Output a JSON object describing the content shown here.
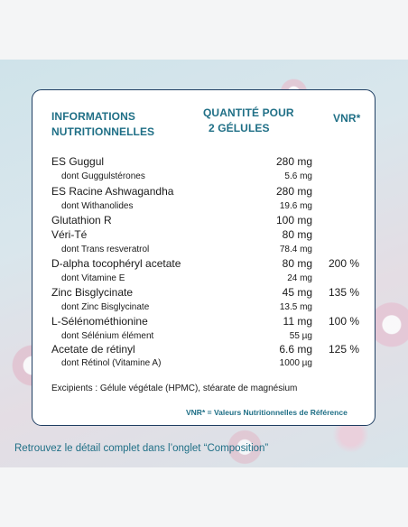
{
  "table": {
    "header": {
      "info_line1": "INFORMATIONS",
      "info_line2": "NUTRITIONNELLES",
      "qty_line1": "QUANTITÉ POUR",
      "qty_line2": "2 GÉLULES",
      "vnr": "VNR*"
    },
    "rows": [
      {
        "name": "ES Guggul",
        "amount": "280 mg",
        "vnr": ""
      },
      {
        "name": "dont Guggulstérones",
        "amount": "5.6 mg",
        "vnr": ""
      },
      {
        "name": "ES Racine Ashwagandha",
        "amount": "280 mg",
        "vnr": ""
      },
      {
        "name": "dont Withanolides",
        "amount": "19.6 mg",
        "vnr": ""
      },
      {
        "name": "Glutathion R",
        "amount": "100 mg",
        "vnr": ""
      },
      {
        "name": "Véri-Té",
        "amount": "80 mg",
        "vnr": ""
      },
      {
        "name": "dont Trans resveratrol",
        "amount": "78.4 mg",
        "vnr": ""
      },
      {
        "name": "D-alpha tocophéryl acetate",
        "amount": "80 mg",
        "vnr": "200 %"
      },
      {
        "name": "dont Vitamine E",
        "amount": "24 mg",
        "vnr": ""
      },
      {
        "name": "Zinc Bisglycinate",
        "amount": "45 mg",
        "vnr": "135 %"
      },
      {
        "name": "dont Zinc Bisglycinate",
        "amount": "13.5 mg",
        "vnr": ""
      },
      {
        "name": "L-Sélénométhionine",
        "amount": "11 mg",
        "vnr": "100 %"
      },
      {
        "name": "dont Sélénium élément",
        "amount": "55 µg",
        "vnr": ""
      },
      {
        "name": "Acetate de rétinyl",
        "amount": "6.6 mg",
        "vnr": "125 %"
      },
      {
        "name": "dont Rétinol (Vitamine A)",
        "amount": "1000 µg",
        "vnr": ""
      }
    ],
    "excipients": "Excipients : Gélule végétale (HPMC), stéarate de magnésium"
  },
  "legend": "VNR* = Valeurs Nutritionnelles de Référence",
  "footer": "Retrouvez le détail complet dans l’onglet “Composition”",
  "colors": {
    "accent": "#1f6f86",
    "border": "#1f3e62"
  }
}
